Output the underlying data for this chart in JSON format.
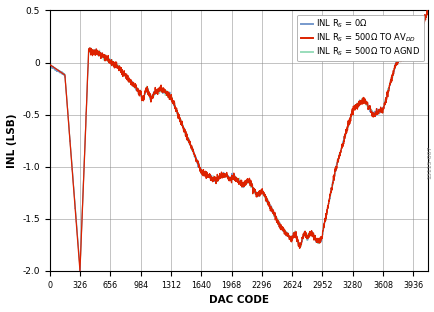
{
  "title": "",
  "xlabel": "DAC CODE",
  "ylabel": "INL (LSB)",
  "xlim": [
    0,
    4095
  ],
  "ylim": [
    -2.0,
    0.5
  ],
  "xticks": [
    0,
    326,
    656,
    984,
    1312,
    1640,
    1968,
    2296,
    2624,
    2952,
    3280,
    3608,
    3936
  ],
  "yticks": [
    -2.0,
    -1.5,
    -1.0,
    -0.5,
    0,
    0.5
  ],
  "legend": [
    {
      "label": "INL R$_S$ = 0Ω",
      "color": "#7799cc",
      "lw": 0.8
    },
    {
      "label": "INL R$_S$ = 500Ω TO AV$_{DD}$",
      "color": "#dd2200",
      "lw": 0.9
    },
    {
      "label": "INL R$_S$ = 500Ω TO AGND",
      "color": "#99ddbb",
      "lw": 0.8
    }
  ],
  "watermark": "13115-007",
  "fig_width": 4.35,
  "fig_height": 3.12,
  "dpi": 100,
  "bg_color": "#ffffff"
}
